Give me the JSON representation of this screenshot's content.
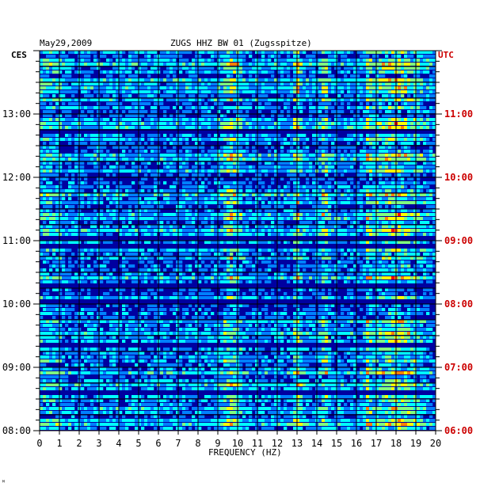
{
  "header": {
    "date": "May29,2009",
    "station": "ZUGS HHZ BW 01 (Zugsspitze)"
  },
  "axes": {
    "left_timezone": "CES",
    "right_timezone": "UTC",
    "xlabel": "FREQUENCY (HZ)"
  },
  "corner_mark": "ᴹ",
  "colors": {
    "background": "#0000a0",
    "left_axis_text": "#000000",
    "right_axis_text": "#cc0000",
    "grid": "#000000"
  },
  "chart_data": {
    "type": "heatmap",
    "title": "ZUGS HHZ BW 01 (Zugsspitze)",
    "subtitle": "May29,2009",
    "xlabel": "FREQUENCY (HZ)",
    "xlim": [
      0,
      20
    ],
    "x_ticks": [
      0,
      1,
      2,
      3,
      4,
      5,
      6,
      7,
      8,
      9,
      10,
      11,
      12,
      13,
      14,
      15,
      16,
      17,
      18,
      19,
      20
    ],
    "y_ticks_left": [
      "08:00",
      "09:00",
      "10:00",
      "11:00",
      "12:00",
      "13:00"
    ],
    "y_ticks_right": [
      "06:00",
      "07:00",
      "08:00",
      "09:00",
      "10:00",
      "11:00"
    ],
    "y_range_local_hours": [
      8.0,
      14.0
    ],
    "colorscale": [
      "#00008c",
      "#0000ff",
      "#0080ff",
      "#00ffff",
      "#80ff80",
      "#ffff00",
      "#ff8000",
      "#ff0000"
    ],
    "persistent_bands_hz": [
      {
        "center": 9.7,
        "width": 0.7
      },
      {
        "center": 13.0,
        "width": 0.3
      },
      {
        "center": 14.4,
        "width": 0.3
      },
      {
        "center": 16.6,
        "width": 0.2
      },
      {
        "center": 18.0,
        "width": 1.8
      }
    ]
  }
}
